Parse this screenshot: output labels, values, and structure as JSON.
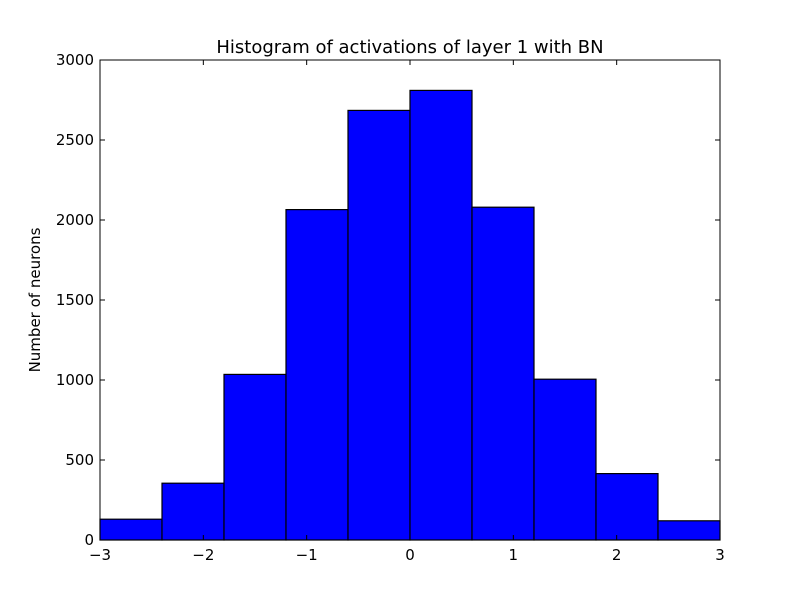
{
  "chart_data": {
    "type": "bar",
    "title": "Histogram of activations of layer 1  with BN",
    "xlabel": "",
    "ylabel": "Number of neurons",
    "bin_edges": [
      -3,
      -2.4,
      -1.8,
      -1.2,
      -0.6,
      0,
      0.6,
      1.2,
      1.8,
      2.4,
      3
    ],
    "values": [
      130,
      355,
      1035,
      2065,
      2685,
      2810,
      2080,
      1005,
      415,
      120
    ],
    "xlim": [
      -3,
      3
    ],
    "ylim": [
      0,
      3000
    ],
    "xticks": [
      -3,
      -2,
      -1,
      0,
      1,
      2,
      3
    ],
    "xtick_labels": [
      "−3",
      "−2",
      "−1",
      "0",
      "1",
      "2",
      "3"
    ],
    "yticks": [
      0,
      500,
      1000,
      1500,
      2000,
      2500,
      3000
    ],
    "ytick_labels": [
      "0",
      "500",
      "1000",
      "1500",
      "2000",
      "2500",
      "3000"
    ],
    "bar_color": "#0000ff",
    "edge_color": "#000000",
    "grid": false,
    "legend": "none"
  }
}
